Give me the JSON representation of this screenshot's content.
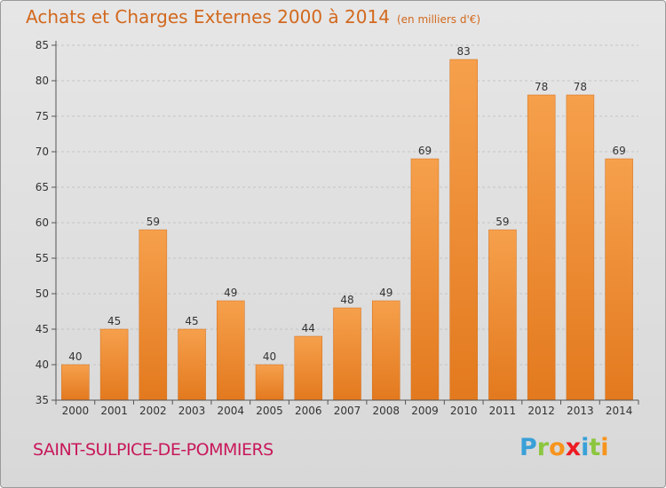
{
  "title": "Achats et Charges Externes 2000 à 2014",
  "unit_note": "(en milliers d'€)",
  "commune": "SAINT-SULPICE-DE-POMMIERS",
  "logo": {
    "letters": [
      "P",
      "r",
      "o",
      "x",
      "i",
      "t",
      "i"
    ],
    "colors": [
      "#3aa0d8",
      "#8cc63f",
      "#f7941d",
      "#ed1c24",
      "#3aa0d8",
      "#8cc63f",
      "#f7941d"
    ]
  },
  "colors": {
    "bar_light": "#f6a04c",
    "bar_dark": "#e3791e",
    "title": "#d2691e",
    "commune": "#c8185a"
  },
  "chart_data": {
    "type": "bar",
    "categories": [
      "2000",
      "2001",
      "2002",
      "2003",
      "2004",
      "2005",
      "2006",
      "2007",
      "2008",
      "2009",
      "2010",
      "2011",
      "2012",
      "2013",
      "2014"
    ],
    "values": [
      40,
      45,
      59,
      45,
      49,
      40,
      44,
      48,
      49,
      69,
      83,
      59,
      78,
      78,
      69
    ],
    "ylim": [
      35,
      85
    ],
    "yticks": [
      35,
      40,
      45,
      50,
      55,
      60,
      65,
      70,
      75,
      80,
      85
    ],
    "grid": "horizontal dashed",
    "data_labels": true
  }
}
